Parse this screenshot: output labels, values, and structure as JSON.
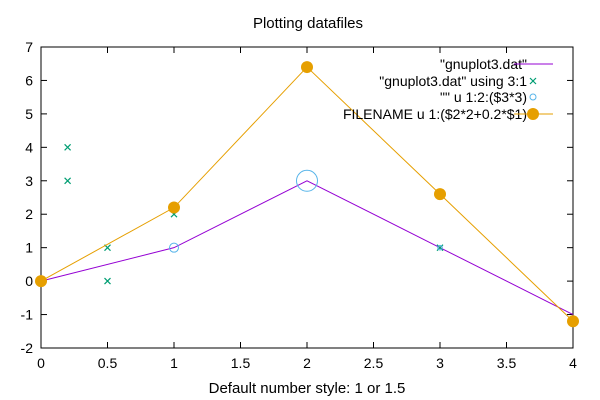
{
  "chart_data": {
    "type": "line",
    "title": "Plotting datafiles",
    "xlabel": "Default number style: 1 or 1.5",
    "ylabel": "",
    "xlim": [
      0,
      4
    ],
    "ylim": [
      -2,
      7
    ],
    "grid": false,
    "legend_position": "top-right",
    "x_ticks": [
      "0",
      "0.5",
      "1",
      "1.5",
      "2",
      "2.5",
      "3",
      "3.5",
      "4"
    ],
    "y_ticks": [
      "-2",
      "-1",
      "0",
      "1",
      "2",
      "3",
      "4",
      "5",
      "6",
      "7"
    ],
    "series": [
      {
        "name": "\"gnuplot3.dat\"",
        "style": "line",
        "color": "#9400d3",
        "x": [
          0,
          1,
          2,
          3,
          4
        ],
        "y": [
          0,
          1,
          3,
          1,
          -1
        ]
      },
      {
        "name": "\"gnuplot3.dat\" using 3:1",
        "style": "points-x",
        "color": "#009e73",
        "x": [
          0,
          1,
          3,
          0.2,
          0.2,
          0.5,
          0.5
        ],
        "y": [
          0,
          2,
          1,
          4,
          3,
          1,
          0
        ]
      },
      {
        "name": "\"\" u 1:2:($3*3)",
        "style": "points-circle",
        "color": "#56b4e9",
        "x": [
          0,
          1,
          2,
          3,
          4
        ],
        "y": [
          0,
          1,
          3,
          1,
          -1
        ],
        "sizes": [
          0,
          3,
          9,
          0.5,
          0
        ]
      },
      {
        "name": "FILENAME u 1:($2*2+0.2*$1)",
        "style": "linespoints",
        "color": "#e69f00",
        "x": [
          0,
          1,
          2,
          3,
          4
        ],
        "y": [
          0,
          2.2,
          6.4,
          2.6,
          -1.2
        ]
      }
    ]
  }
}
